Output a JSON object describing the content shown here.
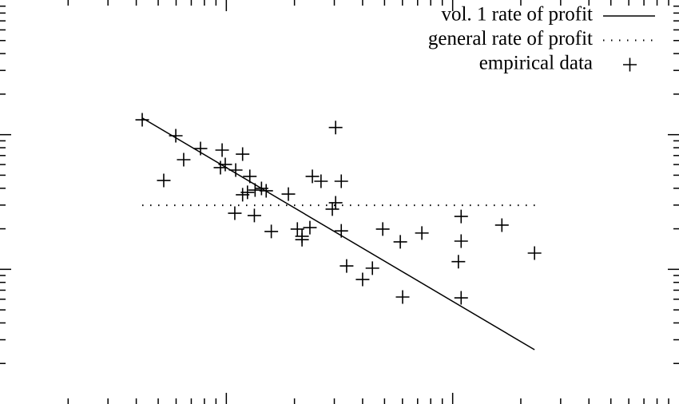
{
  "chart_data": {
    "type": "scatter",
    "log_x": true,
    "log_y": true,
    "legend": "top-right",
    "xlim": [
      0.1,
      100
    ],
    "ylim": [
      0.01,
      10
    ],
    "xticks": [
      1,
      10
    ],
    "xminorticks": [
      0.2,
      0.3,
      0.4,
      0.5,
      0.6,
      0.7,
      0.8,
      0.9,
      2,
      3,
      4,
      5,
      6,
      7,
      8,
      9,
      20,
      30,
      40,
      50,
      60,
      70,
      80,
      90
    ],
    "yticks": [
      0.1,
      1
    ],
    "yminorticks": [
      0.02,
      0.03,
      0.04,
      0.05,
      0.06,
      0.07,
      0.08,
      0.09,
      0.2,
      0.3,
      0.4,
      0.5,
      0.6,
      0.7,
      0.8,
      0.9,
      2,
      3,
      4,
      5,
      6,
      7,
      8,
      9
    ],
    "series": [
      {
        "name": "vol. 1 rate of profit",
        "color": "#000000",
        "style": "line",
        "x": [
          0.425,
          23.0
        ],
        "values": [
          1.33,
          0.0253
        ]
      },
      {
        "name": "general rate of profit",
        "color": "#000000",
        "style": "dots",
        "x": [
          0.425,
          24.2
        ],
        "values": [
          0.299,
          0.299
        ]
      },
      {
        "name": "empirical data",
        "color": "#000000",
        "style": "points",
        "x": [
          0.425,
          0.598,
          0.529,
          0.648,
          0.769,
          0.958,
          0.942,
          0.989,
          1.1,
          1.18,
          1.27,
          1.18,
          1.24,
          1.34,
          1.43,
          1.5,
          1.09,
          1.33,
          1.58,
          1.88,
          2.06,
          2.16,
          2.16,
          2.34,
          2.4,
          2.62,
          3.04,
          3.22,
          3.04,
          2.94,
          3.22,
          3.4,
          4.0,
          4.42,
          4.91,
          6.01,
          5.87,
          7.31,
          10.9,
          10.9,
          10.6,
          10.9,
          16.5,
          23.0
        ],
        "values": [
          1.29,
          0.982,
          0.457,
          0.652,
          0.789,
          0.768,
          0.569,
          0.601,
          0.546,
          0.717,
          0.49,
          0.358,
          0.373,
          0.388,
          0.399,
          0.383,
          0.261,
          0.251,
          0.191,
          0.362,
          0.199,
          0.176,
          0.166,
          0.204,
          0.49,
          0.451,
          1.13,
          0.451,
          0.312,
          0.28,
          0.193,
          0.106,
          0.0841,
          0.102,
          0.199,
          0.0623,
          0.16,
          0.186,
          0.247,
          0.162,
          0.114,
          0.0614,
          0.213,
          0.132
        ]
      }
    ]
  }
}
